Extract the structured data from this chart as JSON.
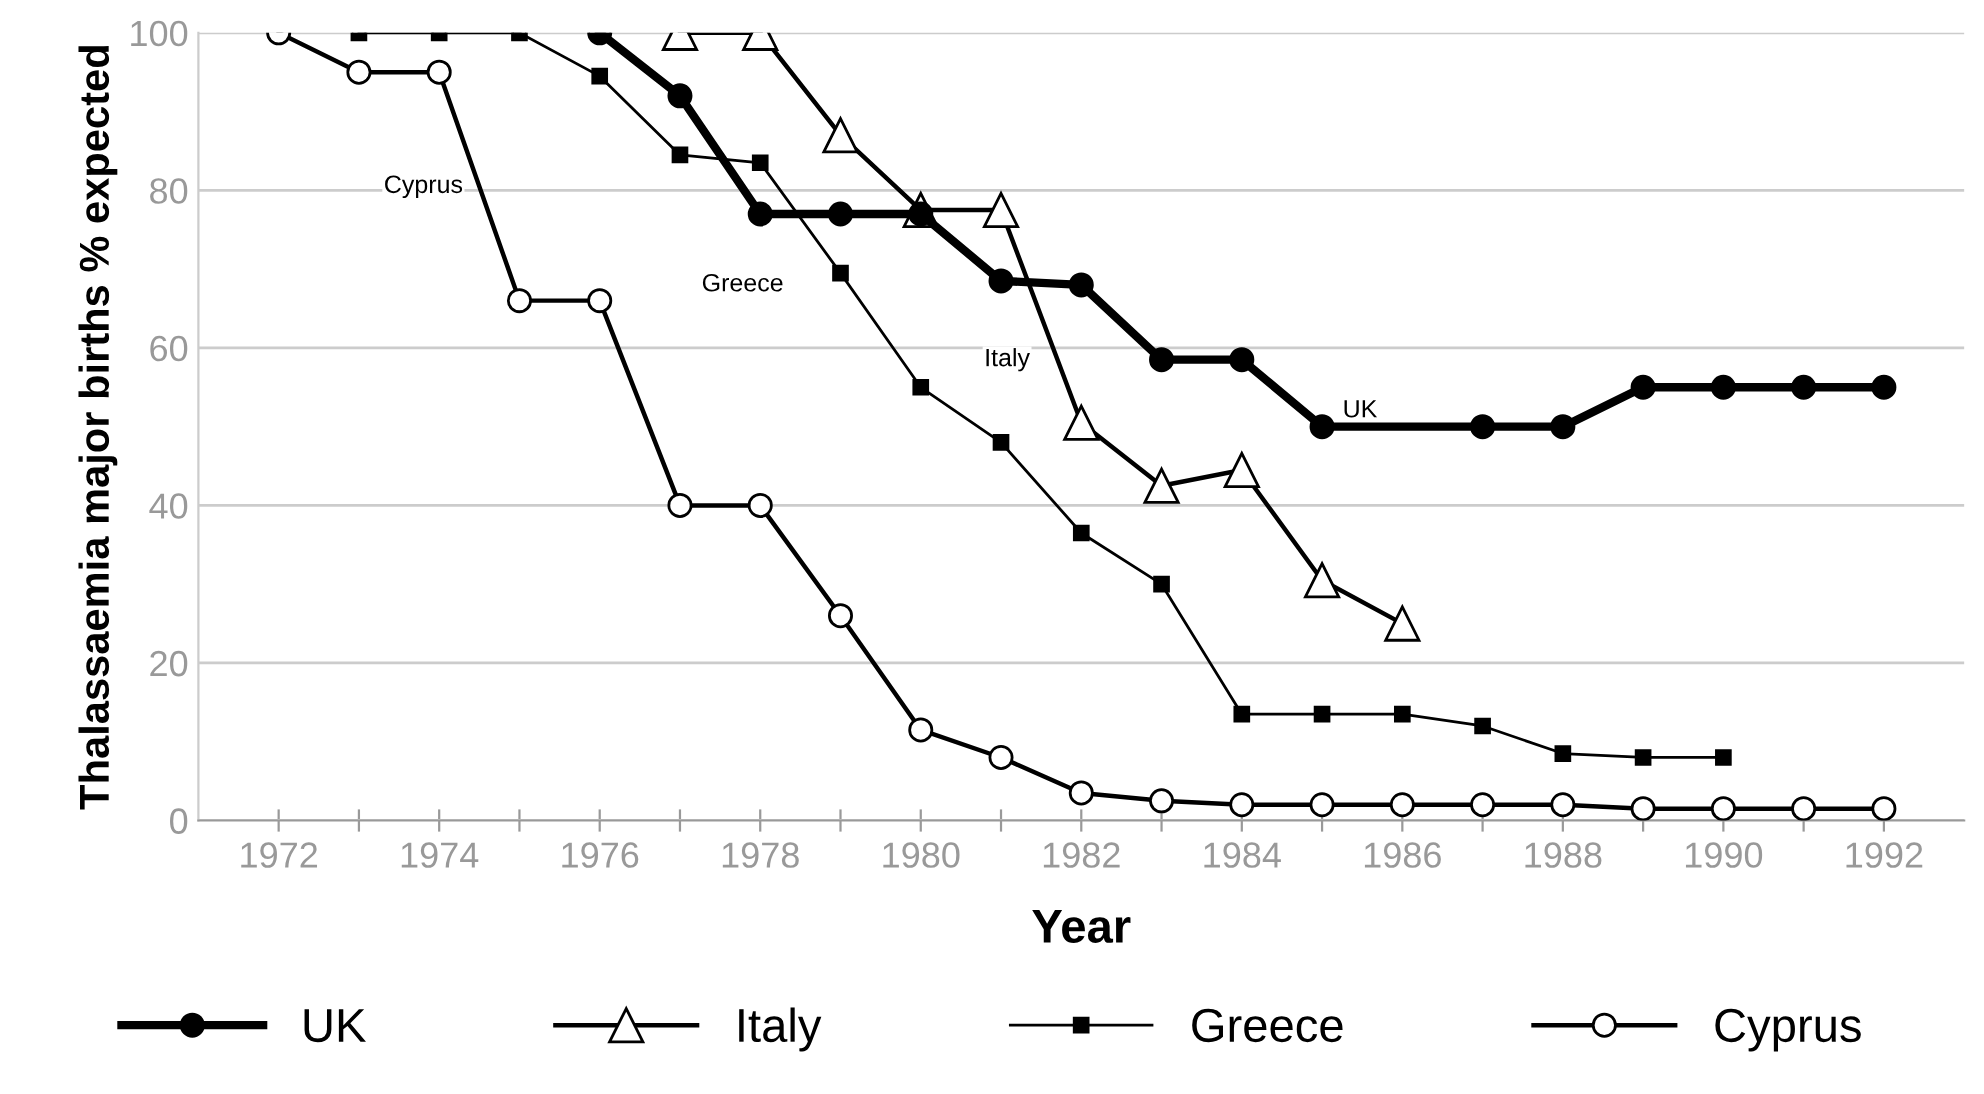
{
  "chart_data": {
    "type": "line",
    "xlabel": "Year",
    "ylabel": "Thalassaemia major births % expected",
    "xlim": [
      1971,
      1993
    ],
    "ylim": [
      0,
      100
    ],
    "xticks": [
      1972,
      {
        "value": 1973,
        "label": null
      },
      1974,
      {
        "value": 1975,
        "label": null
      },
      1976,
      {
        "value": 1977,
        "label": null
      },
      1978,
      {
        "value": 1979,
        "label": null
      },
      1980,
      {
        "value": 1981,
        "label": null
      },
      1982,
      {
        "value": 1983,
        "label": null
      },
      1984,
      {
        "value": 1985,
        "label": null
      },
      1986,
      {
        "value": 1987,
        "label": null
      },
      1988,
      {
        "value": 1989,
        "label": null
      },
      1990,
      {
        "value": 1991,
        "label": null
      },
      1992
    ],
    "yticks": [
      0,
      20,
      40,
      60,
      80,
      100
    ],
    "grid": "y",
    "legend": "bottom",
    "series": [
      {
        "name": "UK",
        "color": "#000000",
        "marker": "circle",
        "x": [
          1976,
          1977,
          1978,
          1979,
          1980,
          1981,
          1982,
          1983,
          1984,
          1985,
          1987,
          1988,
          1989,
          1990,
          1991,
          1992
        ],
        "values": [
          100,
          92,
          77,
          77,
          77,
          68.5,
          68,
          58.5,
          58.5,
          50,
          50,
          50,
          55,
          55,
          55,
          55
        ]
      },
      {
        "name": "Italy",
        "color": "#000000",
        "marker": "triangle",
        "x": [
          1977,
          1978,
          1979,
          1980,
          1981,
          1982,
          1983,
          1984,
          1985,
          1986
        ],
        "values": [
          100,
          100,
          87,
          77.5,
          77.5,
          50.5,
          42.5,
          44.5,
          30.5,
          25
        ]
      },
      {
        "name": "Greece",
        "color": "#000000",
        "marker": "square",
        "x": [
          1973,
          1974,
          1975,
          1976,
          1977,
          1978,
          1979,
          1980,
          1981,
          1982,
          1983,
          1984,
          1985,
          1986,
          1987,
          1988,
          1989,
          1990
        ],
        "values": [
          100,
          100,
          100,
          94.5,
          84.5,
          83.5,
          69.5,
          55,
          48,
          36.5,
          30,
          13.5,
          13.5,
          13.5,
          12,
          8.5,
          8,
          8
        ]
      },
      {
        "name": "Cyprus",
        "color": "#000000",
        "marker": "circle",
        "x": [
          1972,
          1973,
          1974,
          1975,
          1976,
          1977,
          1978,
          1979,
          1980,
          1981,
          1982,
          1983,
          1984,
          1985,
          1986,
          1987,
          1988,
          1989,
          1990,
          1991,
          1992
        ],
        "values": [
          100,
          95,
          95,
          66,
          66,
          40,
          40,
          26,
          11.5,
          8,
          3.5,
          2.5,
          2,
          2,
          2,
          2,
          2,
          1.5,
          1.5,
          1.5,
          1.5
        ]
      }
    ],
    "annotations": [
      "Cyprus",
      "Greece",
      "Italy",
      "UK"
    ]
  }
}
